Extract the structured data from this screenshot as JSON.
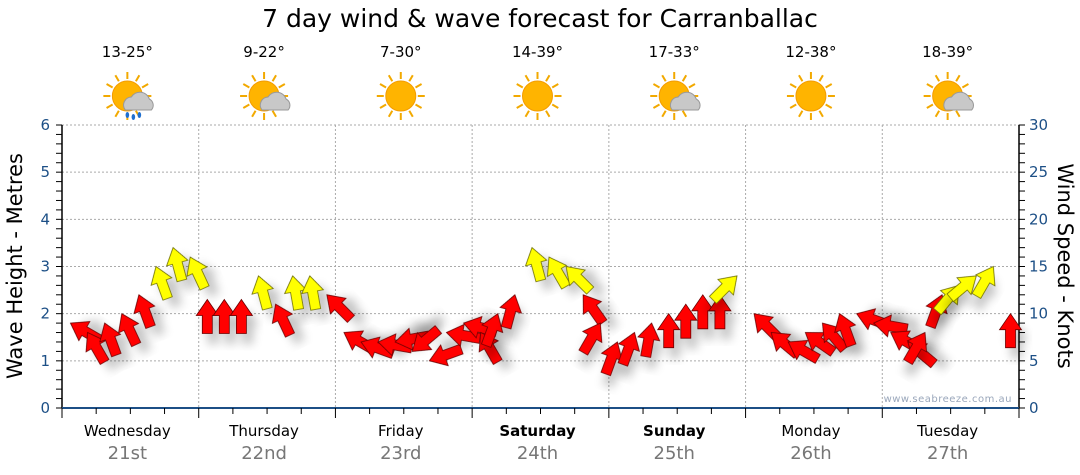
{
  "chart_data": {
    "type": "scatter",
    "title": "7 day wind & wave forecast for Carranballac",
    "ylabel": "Wave Height - Metres",
    "y2label": "Wind Speed - Knots",
    "ylim": [
      0,
      6
    ],
    "y2lim": [
      0,
      30
    ],
    "yticks": [
      "0",
      "1",
      "2",
      "3",
      "4",
      "5",
      "6"
    ],
    "y2ticks": [
      "0",
      "5",
      "10",
      "15",
      "20",
      "25",
      "30"
    ],
    "watermark": "www.seabreeze.com.au",
    "days": [
      {
        "name": "Wednesday",
        "date": "21st",
        "temp": "13-25°",
        "icon": "sun-cloud-rain-icon",
        "bold": false
      },
      {
        "name": "Thursday",
        "date": "22nd",
        "temp": "9-22°",
        "icon": "sun-cloud-icon",
        "bold": false
      },
      {
        "name": "Friday",
        "date": "23rd",
        "temp": "7-30°",
        "icon": "sun-icon",
        "bold": false
      },
      {
        "name": "Saturday",
        "date": "24th",
        "temp": "14-39°",
        "icon": "sun-icon",
        "bold": true
      },
      {
        "name": "Sunday",
        "date": "25th",
        "temp": "17-33°",
        "icon": "sun-cloud-icon",
        "bold": true
      },
      {
        "name": "Monday",
        "date": "26th",
        "temp": "12-38°",
        "icon": "sun-icon",
        "bold": false
      },
      {
        "name": "Tuesday",
        "date": "27th",
        "temp": "18-39°",
        "icon": "sun-cloud-icon",
        "bold": false
      }
    ],
    "wind_threshold_knots": 12.5,
    "colors": {
      "low": "#ff0000",
      "high": "#ffff00",
      "grid": "#999999",
      "axis": "#1c4f86"
    },
    "wind_speed_knots": [
      9,
      8,
      9,
      10,
      12,
      15,
      17,
      16,
      11.5,
      11.5,
      11.5,
      14,
      11,
      14,
      14,
      12,
      8,
      7,
      7,
      7,
      6,
      5,
      8,
      9,
      8,
      10,
      12,
      17,
      16,
      15,
      12,
      9,
      7,
      8,
      9,
      10,
      11,
      12,
      12,
      14,
      10,
      8,
      7,
      8,
      9,
      10,
      10,
      9,
      8,
      7,
      8,
      12,
      13,
      14,
      15,
      10
    ],
    "wind_direction_deg": [
      -60,
      -30,
      -20,
      -25,
      -20,
      -20,
      -15,
      -25,
      0,
      0,
      0,
      -15,
      -25,
      -10,
      -10,
      -45,
      -60,
      -70,
      -80,
      -100,
      -130,
      -110,
      -80,
      -75,
      -30,
      20,
      15,
      -15,
      -30,
      -45,
      -35,
      30,
      20,
      20,
      10,
      0,
      0,
      0,
      0,
      45,
      -45,
      -50,
      -60,
      -55,
      -40,
      -20,
      -70,
      -80,
      -60,
      -50,
      30,
      20,
      40,
      50,
      30,
      0
    ]
  }
}
